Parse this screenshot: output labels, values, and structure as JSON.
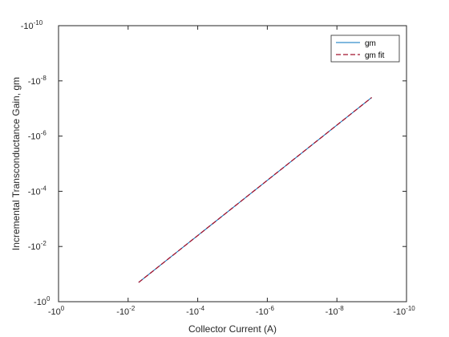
{
  "chart_data": {
    "type": "line",
    "xlabel": "Collector Current (A)",
    "ylabel": "Incremental Transconductance Gain, gm",
    "x_scale": "log",
    "y_scale": "log",
    "x_reversed": true,
    "y_reversed": true,
    "xlim": [
      -1,
      -1e-10
    ],
    "ylim": [
      -1,
      -1e-10
    ],
    "grid": false,
    "legend_position": "top-right",
    "x_ticks": [
      {
        "value": -1,
        "base": "-10",
        "exp": "0"
      },
      {
        "value": -0.01,
        "base": "-10",
        "exp": "-2"
      },
      {
        "value": -0.0001,
        "base": "-10",
        "exp": "-4"
      },
      {
        "value": -1e-06,
        "base": "-10",
        "exp": "-6"
      },
      {
        "value": -1e-08,
        "base": "-10",
        "exp": "-8"
      },
      {
        "value": -1e-10,
        "base": "-10",
        "exp": "-10"
      }
    ],
    "y_ticks": [
      {
        "value": -1,
        "base": "-10",
        "exp": "0"
      },
      {
        "value": -0.01,
        "base": "-10",
        "exp": "-2"
      },
      {
        "value": -0.0001,
        "base": "-10",
        "exp": "-4"
      },
      {
        "value": -1e-06,
        "base": "-10",
        "exp": "-6"
      },
      {
        "value": -1e-08,
        "base": "-10",
        "exp": "-8"
      },
      {
        "value": -1e-10,
        "base": "-10",
        "exp": "-10"
      }
    ],
    "series": [
      {
        "name": "gm",
        "color": "#0072BD",
        "style": "solid",
        "x": [
          -0.005,
          -1e-09
        ],
        "y": [
          -0.2,
          -4e-08
        ]
      },
      {
        "name": "gm fit",
        "color": "#A2142F",
        "style": "dashed",
        "x": [
          -0.005,
          -1e-09
        ],
        "y": [
          -0.2,
          -4e-08
        ]
      }
    ]
  }
}
